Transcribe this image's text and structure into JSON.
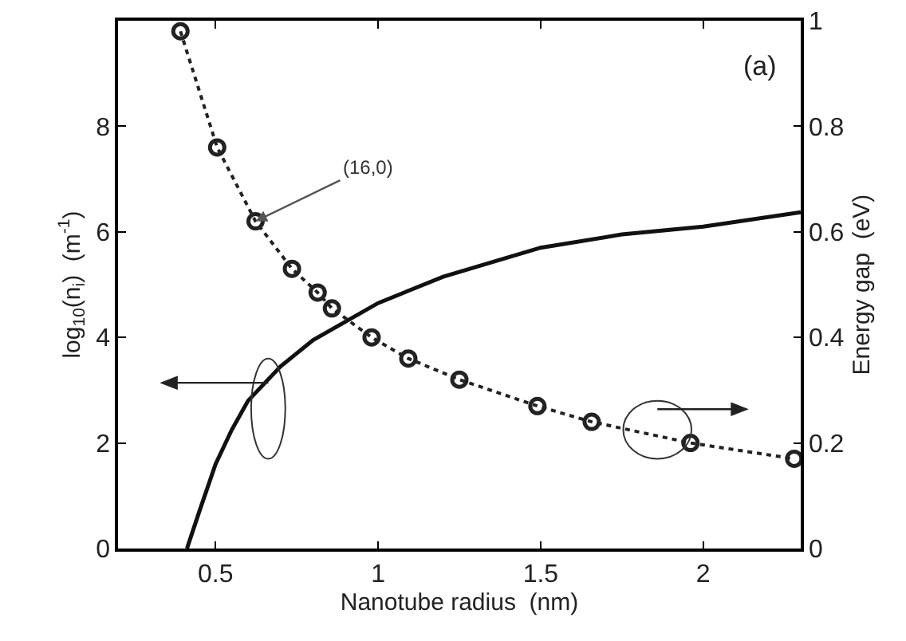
{
  "chart_data": {
    "type": "line",
    "xlabel": "Nanotube radius  (nm)",
    "ylabel": "log$_{10}$(n$_{i}$)  (m$^{-1}$)",
    "y2label": "Energy gap  (eV)",
    "xlim": [
      0.2,
      2.3
    ],
    "xticks": [
      0.5,
      1,
      1.5,
      2
    ],
    "ylim": [
      0,
      10
    ],
    "yticks": [
      0,
      2,
      4,
      6,
      8
    ],
    "y2lim": [
      0,
      1
    ],
    "y2ticks": [
      0,
      0.2,
      0.4,
      0.6,
      0.8,
      1
    ],
    "grid": false,
    "series": [
      {
        "color": "#111111",
        "line_style": "solid",
        "marker": "none",
        "x": [
          0.412,
          0.45,
          0.5,
          0.55,
          0.6,
          0.7,
          0.8,
          0.9,
          1.0,
          1.2,
          1.5,
          1.75,
          2.0,
          2.3
        ],
        "values": [
          0,
          0.7,
          1.6,
          2.25,
          2.8,
          3.45,
          3.95,
          4.3,
          4.65,
          5.15,
          5.7,
          5.95,
          6.1,
          6.37
        ]
      },
      {
        "color": "#222222",
        "line_style": "dotted",
        "marker": "circle",
        "axis": "y2",
        "x": [
          0.392,
          0.505,
          0.623,
          0.735,
          0.814,
          0.858,
          0.98,
          1.093,
          1.25,
          1.49,
          1.657,
          1.961,
          2.28
        ],
        "values": [
          0.98,
          0.76,
          0.62,
          0.53,
          0.485,
          0.455,
          0.4,
          0.36,
          0.32,
          0.27,
          0.24,
          0.2,
          0.17
        ]
      }
    ],
    "annotations": [
      {
        "text": "(16,0)",
        "x": 0.623,
        "y": 6.2
      },
      "(a)"
    ]
  }
}
